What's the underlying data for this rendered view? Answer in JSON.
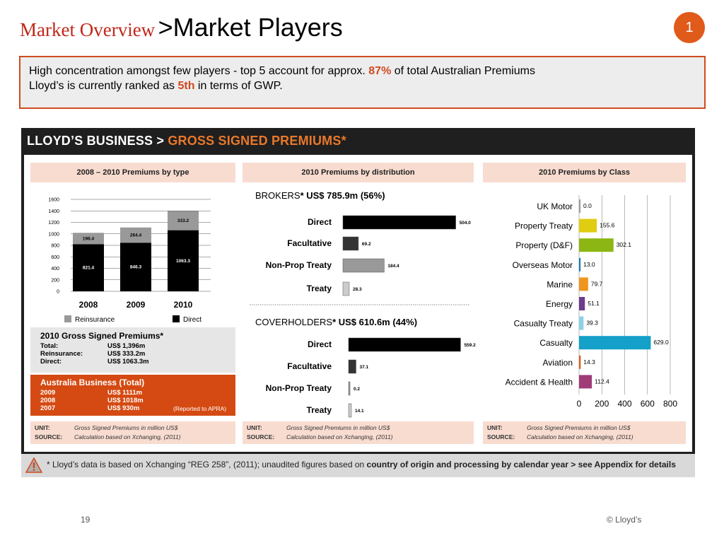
{
  "header": {
    "section": "Market Overview",
    "title": ">Market Players",
    "badge": "1"
  },
  "callout": {
    "line1_pre": "High concentration amongst few players - top 5 account for approx. ",
    "line1_hl": "87%",
    "line1_post": " of total Australian Premiums",
    "line2_pre": "Lloyd’s is currently ranked as ",
    "line2_hl": "5th",
    "line2_post": " in terms of GWP."
  },
  "panel": {
    "head_white": "LLOYD’S BUSINESS > ",
    "head_orange": "GROSS SIGNED PREMIUMS*",
    "footnote_pre": "* Lloyd’s data is based on Xchanging “REG 258”, (2011); unaudited figures based on ",
    "footnote_bold": "country of origin and processing by calendar year > see Appendix for details"
  },
  "col_heads": [
    "2008 – 2010 Premiums by type",
    "2010 Premiums by distribution",
    "2010 Premiums by Class"
  ],
  "summary": {
    "title": "2010 Gross Signed Premiums*",
    "rows": [
      {
        "k": "Total:",
        "v": "US$ 1,396m"
      },
      {
        "k": "Reinsurance:",
        "v": "US$ 333.2m"
      },
      {
        "k": "Direct:",
        "v": "US$ 1063.3m"
      }
    ]
  },
  "australia": {
    "title": "Australia Business (Total)",
    "rows": [
      {
        "k": "2009",
        "v": "US$ 1111m"
      },
      {
        "k": "2008",
        "v": "US$ 1018m"
      },
      {
        "k": "2007",
        "v": "US$ 930m"
      }
    ],
    "note": "(Reported to APRA)"
  },
  "unit_boxes": [
    {
      "unit_k": "UNIT:",
      "unit_v": "Gross Signed Premiums in million US$",
      "src_k": "SOURCE:",
      "src_v": "Calculation based on Xchanging, (2011)"
    },
    {
      "unit_k": "UNIT:",
      "unit_v": "Gross Signed Premiums in million US$",
      "src_k": "SOURCE:",
      "src_v": "Calculation based on Xchanging, (2011)"
    },
    {
      "unit_k": "UNIT:",
      "unit_v": "Gross Signed Premiums in million US$",
      "src_k": "SOURCE:",
      "src_v": "Calculation based on Xchanging, (2011)"
    }
  ],
  "footer": {
    "page": "19",
    "copyright": "© Lloyd’s"
  },
  "chart_data": [
    {
      "type": "bar",
      "stacked": true,
      "title": "2008 – 2010 Premiums by type",
      "categories": [
        "2008",
        "2009",
        "2010"
      ],
      "series": [
        {
          "name": "Direct",
          "values": [
            821.4,
            846.3,
            1063.3
          ],
          "color": "#000000"
        },
        {
          "name": "Reinsurance",
          "values": [
            196.4,
            264.4,
            333.2
          ],
          "color": "#999999"
        }
      ],
      "ylim": [
        0,
        1600
      ],
      "yticks": [
        0,
        200,
        400,
        600,
        800,
        1000,
        1200,
        1400,
        1600
      ],
      "legend": "bottom",
      "grid": true
    },
    {
      "type": "bar",
      "orientation": "horizontal",
      "title": "BROKERS* US$ 785.9m (56%)",
      "title_main": "BROKERS",
      "title_rest": "* US$ 785.9m (56%)",
      "categories": [
        "Direct",
        "Facultative",
        "Non-Prop Treaty",
        "Treaty"
      ],
      "values": [
        504.0,
        69.2,
        184.4,
        28.3
      ],
      "labels": [
        "504.0",
        "69.2",
        "184.4",
        "28.3"
      ],
      "colors": [
        "#000000",
        "#333333",
        "#999999",
        "#cccccc"
      ],
      "xlim": [
        0,
        600
      ]
    },
    {
      "type": "bar",
      "orientation": "horizontal",
      "title": "COVERHOLDERS* US$ 610.6m (44%)",
      "title_main": "COVERHOLDERS",
      "title_rest": "* US$ 610.6m (44%)",
      "categories": [
        "Direct",
        "Facultative",
        "Non-Prop Treaty",
        "Treaty"
      ],
      "values": [
        559.2,
        37.1,
        0.2,
        14.1
      ],
      "labels": [
        "559.2",
        "37.1",
        "0.2",
        "14.1"
      ],
      "colors": [
        "#000000",
        "#333333",
        "#999999",
        "#cccccc"
      ],
      "xlim": [
        0,
        600
      ]
    },
    {
      "type": "bar",
      "orientation": "horizontal",
      "title": "2010 Premiums by Class",
      "categories": [
        "UK Motor",
        "Property Treaty",
        "Property (D&F)",
        "Overseas Motor",
        "Marine",
        "Energy",
        "Casualty Treaty",
        "Casualty",
        "Aviation",
        "Accident & Health"
      ],
      "values": [
        0.0,
        155.6,
        302.1,
        13.0,
        79.7,
        51.1,
        39.3,
        629.0,
        14.3,
        112.4
      ],
      "labels": [
        "0.0",
        "155.6",
        "302.1",
        "13.0",
        "79.7",
        "51.1",
        "39.3",
        "629.0",
        "14.3",
        "112.4"
      ],
      "colors": [
        "#999999",
        "#e0cc10",
        "#8cb614",
        "#1478b4",
        "#f0961e",
        "#6e3c8c",
        "#8cd2e6",
        "#14a0c8",
        "#e05a1a",
        "#a03c78"
      ],
      "xlim": [
        0,
        800
      ],
      "xticks": [
        0,
        200,
        400,
        600,
        800
      ],
      "grid": true
    }
  ]
}
